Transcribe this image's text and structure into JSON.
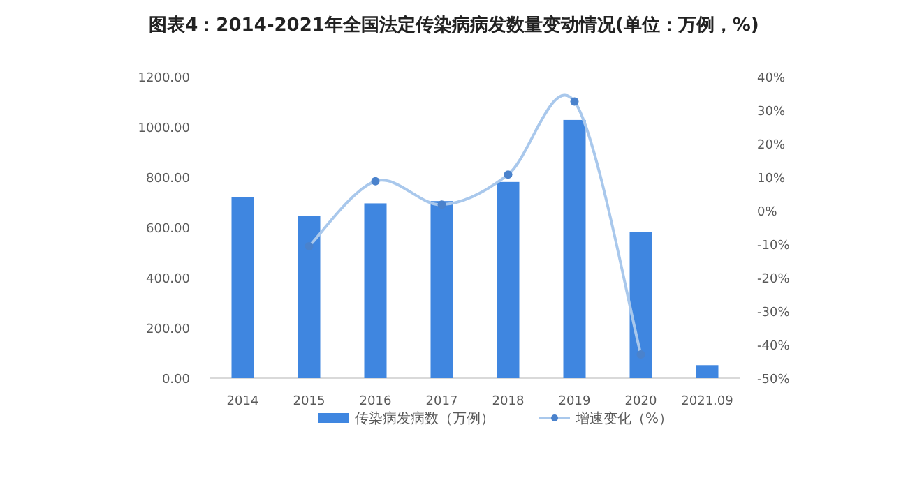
{
  "chart_data": {
    "type": "bar",
    "title": "图表4：2014-2021年全国法定传染病病发数量变动情况(单位：万例，%)",
    "categories": [
      "2014",
      "2015",
      "2016",
      "2017",
      "2018",
      "2019",
      "2020",
      "2021.09"
    ],
    "series": [
      {
        "name": "传染病发病数（万例）",
        "color": "#3f86e0",
        "values": [
          722,
          646,
          696,
          705,
          781,
          1028,
          583,
          52
        ]
      },
      {
        "name": "增速变化（%）",
        "type": "line",
        "axis": "y2",
        "color": "#a9c8ec",
        "marker": "circle",
        "values": [
          null,
          -10.6,
          8.8,
          1.8,
          10.8,
          32.6,
          -42.9,
          null
        ]
      }
    ],
    "ylim": [
      0,
      1200
    ],
    "yticks": [
      {
        "value": 0,
        "label": "0.00"
      },
      {
        "value": 200,
        "label": "200.00"
      },
      {
        "value": 400,
        "label": "400.00"
      },
      {
        "value": 600,
        "label": "600.00"
      },
      {
        "value": 800,
        "label": "800.00"
      },
      {
        "value": 1000,
        "label": "1000.00"
      },
      {
        "value": 1200,
        "label": "1200.00"
      }
    ],
    "y2lim": [
      -50,
      40
    ],
    "y2ticks": [
      {
        "value": -50,
        "label": "-50%"
      },
      {
        "value": -40,
        "label": "-40%"
      },
      {
        "value": -30,
        "label": "-30%"
      },
      {
        "value": -20,
        "label": "-20%"
      },
      {
        "value": -10,
        "label": "-10%"
      },
      {
        "value": 0,
        "label": "0%"
      },
      {
        "value": 10,
        "label": "10%"
      },
      {
        "value": 20,
        "label": "20%"
      },
      {
        "value": 30,
        "label": "30%"
      },
      {
        "value": 40,
        "label": "40%"
      }
    ],
    "legend": "bottom"
  }
}
